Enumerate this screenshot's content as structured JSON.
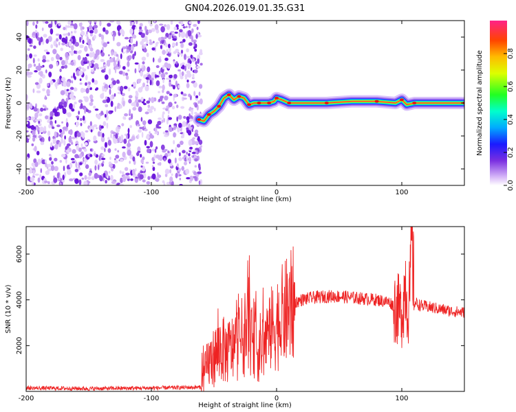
{
  "chart_data": [
    {
      "type": "heatmap",
      "title": "GN04.2026.019.01.35.G31",
      "xlabel": "Height of straight line (km)",
      "ylabel": "Frequency (Hz)",
      "xlim": [
        -200,
        150
      ],
      "ylim": [
        -50,
        50
      ],
      "x_ticks": [
        "-200",
        "-100",
        "0",
        "100"
      ],
      "y_ticks": [
        "-40",
        "-20",
        "0",
        "20",
        "40"
      ],
      "noise_region_x": [
        -200,
        -60
      ],
      "signal_trace": {
        "x": [
          -62,
          -58,
          -54,
          -50,
          -46,
          -42,
          -38,
          -34,
          -30,
          -26,
          -22,
          -18,
          -14,
          -10,
          -6,
          -2,
          0,
          4,
          10,
          20,
          40,
          60,
          80,
          95,
          100,
          104,
          110,
          130,
          150
        ],
        "freq": [
          -10,
          -11,
          -7,
          -5,
          -2,
          3,
          5,
          2,
          4,
          3,
          -1,
          0,
          0,
          0,
          0,
          1,
          3,
          2,
          0,
          0,
          0,
          1,
          1,
          0,
          2,
          -1,
          0,
          0,
          0
        ]
      },
      "colorbar": {
        "label": "Normalized spectral amplitude",
        "range": [
          0,
          1
        ],
        "ticks": [
          "0.0",
          "0.2",
          "0.4",
          "0.6",
          "0.8"
        ]
      }
    },
    {
      "type": "line",
      "xlabel": "Height of straight line (km)",
      "ylabel": "SNR (10 * v/v)",
      "xlim": [
        -200,
        150
      ],
      "ylim": [
        0,
        7200
      ],
      "x_ticks": [
        "-200",
        "-100",
        "0",
        "100"
      ],
      "y_ticks": [
        "2000",
        "4000",
        "6000"
      ],
      "series": [
        {
          "name": "SNR",
          "color": "#ee2222",
          "x": [
            -200,
            -150,
            -100,
            -60,
            -58,
            -55,
            -50,
            -45,
            -40,
            -35,
            -30,
            -25,
            -22,
            -20,
            -18,
            -15,
            -10,
            -5,
            0,
            5,
            10,
            15,
            20,
            30,
            40,
            50,
            60,
            70,
            80,
            90,
            95,
            100,
            103,
            105,
            107,
            108,
            110,
            115,
            120,
            130,
            140,
            150
          ],
          "y": [
            150,
            120,
            150,
            180,
            600,
            1200,
            1500,
            1900,
            1700,
            1900,
            2200,
            2500,
            3400,
            2000,
            2400,
            1800,
            2100,
            2600,
            3000,
            3300,
            3600,
            3900,
            4000,
            4100,
            4150,
            4150,
            4100,
            4050,
            4000,
            3900,
            3700,
            3400,
            4800,
            3500,
            4600,
            7200,
            3900,
            3750,
            3700,
            3600,
            3500,
            3450
          ]
        }
      ]
    }
  ]
}
